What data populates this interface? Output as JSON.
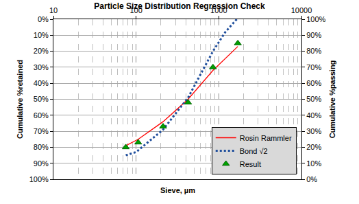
{
  "chart_data": {
    "type": "line",
    "title": "Particle Size Distribution Regression Check",
    "x_label": "Sieve, µm",
    "y_label": "Cumulative %retained",
    "y2_label": "Cumulative %passing",
    "log": "x",
    "grid": true,
    "legend": "bottom right",
    "xlim": [
      10,
      10000
    ],
    "xticks": [
      10,
      100,
      1000,
      10000
    ],
    "ylim": [
      100,
      0
    ],
    "yticks": [
      {
        "value": 0,
        "label": "0%"
      },
      {
        "value": 10,
        "label": "10%"
      },
      {
        "value": 20,
        "label": "20%"
      },
      {
        "value": 30,
        "label": "30%"
      },
      {
        "value": 40,
        "label": "40%"
      },
      {
        "value": 50,
        "label": "50%"
      },
      {
        "value": 60,
        "label": "60%"
      },
      {
        "value": 70,
        "label": "70%"
      },
      {
        "value": 80,
        "label": "80%"
      },
      {
        "value": 90,
        "label": "90%"
      },
      {
        "value": 100,
        "label": "100%"
      }
    ],
    "y2lim": [
      0,
      100
    ],
    "y2ticks": [
      {
        "value": 0,
        "label": "0%"
      },
      {
        "value": 10,
        "label": "10%"
      },
      {
        "value": 20,
        "label": "20%"
      },
      {
        "value": 30,
        "label": "30%"
      },
      {
        "value": 40,
        "label": "40%"
      },
      {
        "value": 50,
        "label": "50%"
      },
      {
        "value": 60,
        "label": "60%"
      },
      {
        "value": 70,
        "label": "70%"
      },
      {
        "value": 80,
        "label": "80%"
      },
      {
        "value": 90,
        "label": "90%"
      },
      {
        "value": 100,
        "label": "100%"
      }
    ],
    "series": [
      {
        "name": "Rosin Rammler",
        "type": "line",
        "color": "#ff0000",
        "line_style": "solid",
        "x": [
          75,
          106,
          212,
          425,
          850,
          1700
        ],
        "values": [
          79,
          75,
          64,
          50,
          32,
          17
        ]
      },
      {
        "name": "Bond √2",
        "type": "line",
        "color": "#1f4e9c",
        "line_style": "dot",
        "x": [
          75,
          100,
          212,
          425,
          850,
          1200,
          1650
        ],
        "values": [
          85,
          83,
          69,
          49,
          20,
          8,
          0
        ]
      },
      {
        "name": "Result",
        "type": "scatter",
        "color": "#00a000",
        "marker": "triangle-up",
        "x": [
          75,
          106,
          212,
          425,
          850,
          1700
        ],
        "values": [
          80,
          77,
          67,
          52,
          30,
          15
        ]
      }
    ]
  }
}
